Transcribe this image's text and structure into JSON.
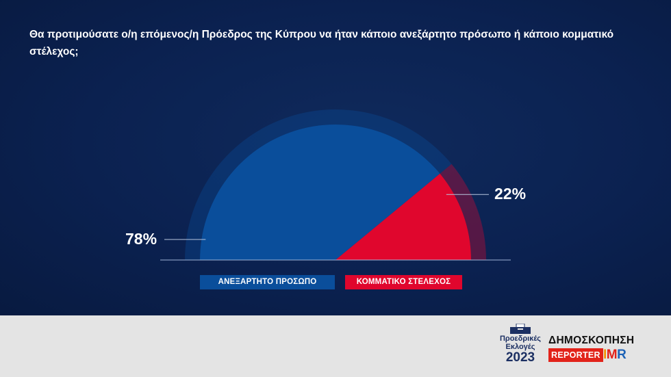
{
  "question": "Θα προτιμούσατε ο/η επόμενος/η Πρόεδρος της Κύπρου να ήταν κάποιο ανεξάρτητο πρόσωπο ή κάποιο κομματικό στέλεχος;",
  "chart_data": {
    "type": "pie",
    "variant": "half-donut-semicircle",
    "labels": [
      "ΑΝΕΞΑΡΤΗΤΟ ΠΡΟΣΩΠΟ",
      "ΚΟΜΜΑΤΙΚΟ ΣΤΕΛΕΧΟΣ"
    ],
    "values": [
      78,
      22
    ],
    "value_labels": [
      "78%",
      "22%"
    ],
    "colors": [
      "#0a4e9b",
      "#e0062d"
    ],
    "legend_placement": "bottom"
  },
  "colors": {
    "background": "#0b2150",
    "footer": "#e4e4e4",
    "independent": "#0a4e9b",
    "party": "#e0062d"
  },
  "footer": {
    "election_logo": {
      "line1": "Προεδρικές",
      "line2": "Εκλογές",
      "year": "2023",
      "icon": "ballot-box-icon"
    },
    "poll_logo": {
      "title": "ΔΗΜΟΣΚΟΠΗΣΗ",
      "brand1": "REPORTER",
      "brand2": "IMR"
    }
  }
}
